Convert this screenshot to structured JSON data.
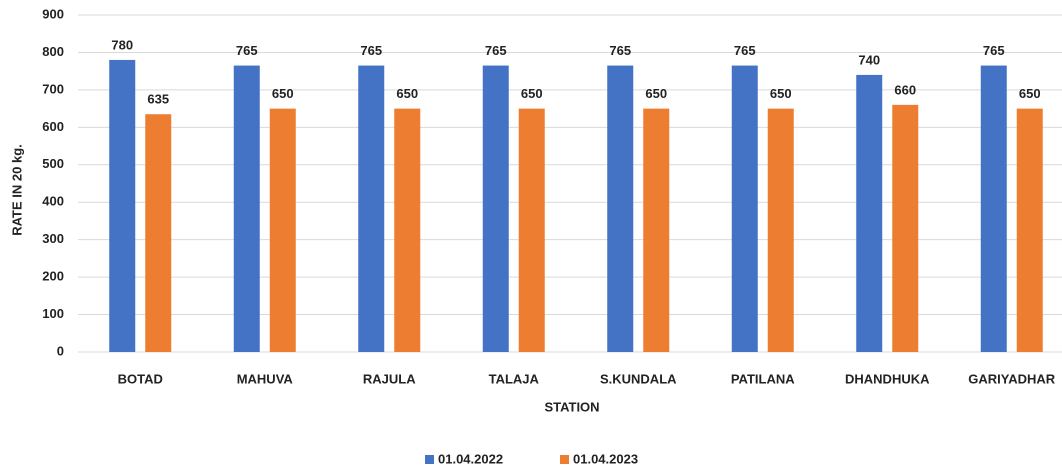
{
  "chart_data": {
    "type": "bar",
    "categories": [
      "BOTAD",
      "MAHUVA",
      "RAJULA",
      "TALAJA",
      "S.KUNDALA",
      "PATILANA",
      "DHANDHUKA",
      "GARIYADHAR"
    ],
    "series": [
      {
        "name": "01.04.2022",
        "color": "#4472c4",
        "values": [
          780,
          765,
          765,
          765,
          765,
          765,
          740,
          765
        ]
      },
      {
        "name": "01.04.2023",
        "color": "#ed7d31",
        "values": [
          635,
          650,
          650,
          650,
          650,
          650,
          660,
          650
        ]
      }
    ],
    "x_label": "STATION",
    "y_label": "RATE IN 20 kg.",
    "ylim": [
      0,
      900
    ],
    "yticks": [
      0,
      100,
      200,
      300,
      400,
      500,
      600,
      700,
      800,
      900
    ],
    "grid": true,
    "legend": "bottom"
  }
}
